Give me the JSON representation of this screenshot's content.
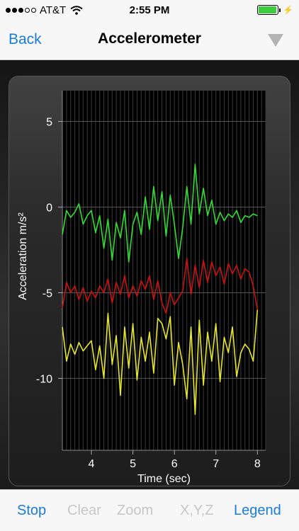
{
  "status_bar": {
    "carrier": "AT&T",
    "time": "2:55 PM",
    "signal_bars_filled": 3,
    "signal_bars_total": 5,
    "battery_level": 0.95,
    "icons": [
      "wifi-icon",
      "battery-icon",
      "charging-bolt-icon"
    ]
  },
  "nav": {
    "back_label": "Back",
    "title": "Accelerometer",
    "menu_icon": "triangle-down-icon"
  },
  "toolbar": {
    "stop": "Stop",
    "clear": "Clear",
    "zoom": "Zoom",
    "xyz": "X,Y,Z",
    "legend": "Legend"
  },
  "colors": {
    "accent": "#1a7cd9",
    "disabled": "#c7c7c7",
    "x_series": "#33dd33",
    "y_series": "#cc1111",
    "z_series": "#e6e62a"
  },
  "chart_data": {
    "type": "line",
    "xlabel": "Time (sec)",
    "ylabel": "Acceleration m/s²",
    "xlim": [
      3.3,
      8.2
    ],
    "ylim": [
      -14.2,
      6.8
    ],
    "x_ticks": [
      "4",
      "5",
      "6",
      "7",
      "8"
    ],
    "y_ticks": [
      "5",
      "0",
      "-5",
      "-10"
    ],
    "grid": true,
    "series": [
      {
        "color": "#33dd33",
        "x": [
          3.3,
          3.4,
          3.5,
          3.6,
          3.7,
          3.8,
          3.9,
          4.0,
          4.1,
          4.2,
          4.3,
          4.4,
          4.5,
          4.6,
          4.7,
          4.8,
          4.9,
          5.0,
          5.1,
          5.2,
          5.3,
          5.4,
          5.5,
          5.6,
          5.7,
          5.8,
          5.9,
          6.0,
          6.1,
          6.2,
          6.3,
          6.4,
          6.5,
          6.6,
          6.7,
          6.8,
          6.9,
          7.0,
          7.1,
          7.2,
          7.3,
          7.4,
          7.5,
          7.6,
          7.7,
          7.8,
          7.9,
          8.0
        ],
        "y": [
          -1.6,
          -0.2,
          -0.6,
          -0.3,
          0.2,
          -1.0,
          -0.5,
          -0.2,
          -1.5,
          -0.5,
          -2.4,
          -0.7,
          -3.1,
          -0.9,
          -1.8,
          -0.2,
          -3.2,
          -1.0,
          -0.3,
          -1.6,
          0.6,
          -1.3,
          1.2,
          -0.8,
          0.9,
          -1.7,
          0.7,
          -1.0,
          -3.0,
          -1.2,
          1.2,
          -1.0,
          2.5,
          -0.4,
          1.1,
          -0.5,
          0.4,
          -1.0,
          -0.3,
          -0.8,
          -0.4,
          -0.6,
          -0.2,
          -0.9,
          -0.5,
          -0.6,
          -0.4,
          -0.5
        ]
      },
      {
        "color": "#cc1111",
        "x": [
          3.3,
          3.4,
          3.5,
          3.6,
          3.7,
          3.8,
          3.9,
          4.0,
          4.1,
          4.2,
          4.3,
          4.4,
          4.5,
          4.6,
          4.7,
          4.8,
          4.9,
          5.0,
          5.1,
          5.2,
          5.3,
          5.4,
          5.5,
          5.6,
          5.7,
          5.8,
          5.9,
          6.0,
          6.1,
          6.2,
          6.3,
          6.4,
          6.5,
          6.6,
          6.7,
          6.8,
          6.9,
          7.0,
          7.1,
          7.2,
          7.3,
          7.4,
          7.5,
          7.6,
          7.7,
          7.8,
          7.9,
          8.0
        ],
        "y": [
          -5.9,
          -4.4,
          -5.0,
          -4.6,
          -5.4,
          -4.7,
          -5.5,
          -4.9,
          -5.3,
          -4.6,
          -5.0,
          -4.2,
          -5.6,
          -4.4,
          -5.1,
          -4.0,
          -5.3,
          -4.6,
          -5.2,
          -4.3,
          -4.8,
          -4.0,
          -5.4,
          -4.3,
          -5.6,
          -6.2,
          -5.0,
          -5.7,
          -5.3,
          -4.9,
          -3.0,
          -5.1,
          -3.4,
          -4.7,
          -3.1,
          -4.4,
          -3.2,
          -4.0,
          -3.5,
          -4.5,
          -3.3,
          -3.9,
          -3.4,
          -4.2,
          -3.6,
          -3.8,
          -4.6,
          -6.0
        ]
      },
      {
        "color": "#e6e62a",
        "x": [
          3.3,
          3.4,
          3.5,
          3.6,
          3.7,
          3.8,
          3.9,
          4.0,
          4.1,
          4.2,
          4.3,
          4.4,
          4.5,
          4.6,
          4.7,
          4.8,
          4.9,
          5.0,
          5.1,
          5.2,
          5.3,
          5.4,
          5.5,
          5.6,
          5.7,
          5.8,
          5.9,
          6.0,
          6.1,
          6.2,
          6.3,
          6.4,
          6.5,
          6.6,
          6.7,
          6.8,
          6.9,
          7.0,
          7.1,
          7.2,
          7.3,
          7.4,
          7.5,
          7.6,
          7.7,
          7.8,
          7.9,
          8.0
        ],
        "y": [
          -7.0,
          -9.0,
          -8.0,
          -8.6,
          -7.9,
          -8.4,
          -8.1,
          -7.8,
          -9.5,
          -8.1,
          -10.0,
          -6.2,
          -9.2,
          -7.5,
          -11.0,
          -7.0,
          -9.4,
          -6.8,
          -10.1,
          -7.6,
          -9.0,
          -7.3,
          -9.7,
          -6.5,
          -6.8,
          -7.7,
          -6.4,
          -10.4,
          -7.9,
          -9.2,
          -11.2,
          -7.0,
          -12.1,
          -6.6,
          -10.4,
          -7.3,
          -9.0,
          -6.8,
          -10.2,
          -7.6,
          -8.5,
          -7.0,
          -9.9,
          -8.5,
          -8.0,
          -8.3,
          -9.0,
          -6.0
        ]
      }
    ]
  }
}
